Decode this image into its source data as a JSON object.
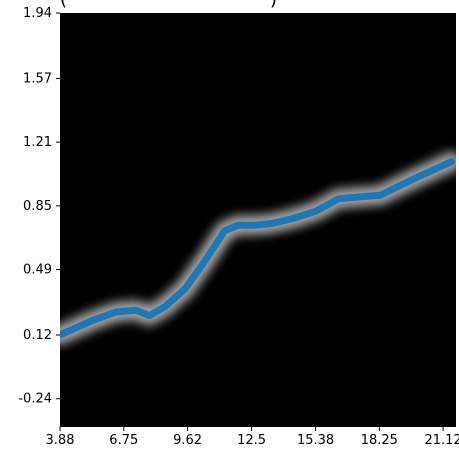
{
  "chart_data": {
    "type": "line",
    "x": [
      3.88,
      5.3,
      6.4,
      7.3,
      7.9,
      8.6,
      9.5,
      10.3,
      11.3,
      11.9,
      12.6,
      13.4,
      14.4,
      15.4,
      16.4,
      17.3,
      18.3,
      19.1,
      20.1,
      20.8,
      21.5
    ],
    "y": [
      0.12,
      0.2,
      0.25,
      0.26,
      0.23,
      0.28,
      0.38,
      0.52,
      0.71,
      0.74,
      0.74,
      0.75,
      0.78,
      0.82,
      0.89,
      0.9,
      0.91,
      0.96,
      1.02,
      1.06,
      1.1
    ],
    "xticks": [
      "3.88",
      "6.75",
      "9.62",
      "12.5",
      "15.38",
      "18.25",
      "21.12"
    ],
    "yticks": [
      "1.94",
      "1.57",
      "1.21",
      "0.85",
      "0.49",
      "0.12",
      "-0.24"
    ],
    "xlim": [
      3.88,
      21.7
    ],
    "ylim": [
      -0.4,
      1.94
    ],
    "grid": false,
    "background": "#000000",
    "line_color": "#1f77b4",
    "glow_color": "#ffffff"
  }
}
